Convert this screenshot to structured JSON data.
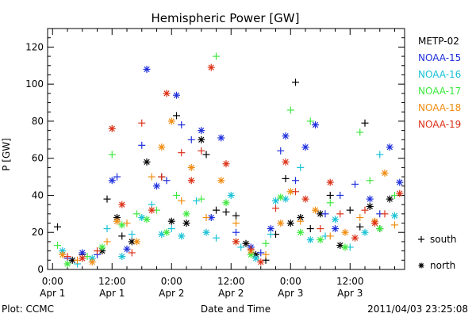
{
  "chart_data": {
    "type": "scatter",
    "title": "Hemispheric Power [GW]",
    "ylabel": "P [GW]",
    "xlabel": "Date and Time",
    "ylim": [
      0,
      130
    ],
    "yticks": [
      0,
      20,
      40,
      60,
      80,
      100,
      120
    ],
    "xlim_hours": [
      -1,
      71
    ],
    "xticks": [
      {
        "hour": 0,
        "time": "0:00",
        "date": "Apr 1"
      },
      {
        "hour": 12,
        "time": "12:00",
        "date": "Apr 1"
      },
      {
        "hour": 24,
        "time": "0:00",
        "date": "Apr 2"
      },
      {
        "hour": 36,
        "time": "12:00",
        "date": "Apr 2"
      },
      {
        "hour": 48,
        "time": "0:00",
        "date": "Apr 3"
      },
      {
        "hour": 60,
        "time": "12:00",
        "date": "Apr 3"
      }
    ],
    "marker_legend": [
      {
        "symbol": "+",
        "label": "south"
      },
      {
        "symbol": "*",
        "label": "north"
      }
    ],
    "series": [
      {
        "name": "METP-02",
        "color": "#000000",
        "points": [
          [
            1,
            23,
            "+"
          ],
          [
            4,
            5,
            "*"
          ],
          [
            6,
            8,
            "+"
          ],
          [
            10,
            10,
            "*"
          ],
          [
            11,
            38,
            "+"
          ],
          [
            13,
            28,
            "*"
          ],
          [
            14,
            18,
            "+"
          ],
          [
            16,
            15,
            "*"
          ],
          [
            19,
            58,
            "*"
          ],
          [
            22,
            50,
            "+"
          ],
          [
            24,
            26,
            "*"
          ],
          [
            25,
            83,
            "+"
          ],
          [
            27,
            25,
            "*"
          ],
          [
            30,
            70,
            "*"
          ],
          [
            31,
            62,
            "+"
          ],
          [
            33,
            32,
            "+"
          ],
          [
            35,
            31,
            "+"
          ],
          [
            37,
            29,
            "+"
          ],
          [
            39,
            14,
            "*"
          ],
          [
            41,
            8,
            "*"
          ],
          [
            43,
            5,
            "+"
          ],
          [
            45,
            19,
            "+"
          ],
          [
            47,
            49,
            "+"
          ],
          [
            48,
            25,
            "*"
          ],
          [
            49,
            101,
            "+"
          ],
          [
            50,
            28,
            "*"
          ],
          [
            52,
            22,
            "+"
          ],
          [
            54,
            30,
            "*"
          ],
          [
            56,
            40,
            "+"
          ],
          [
            58,
            13,
            "*"
          ],
          [
            60,
            32,
            "+"
          ],
          [
            62,
            23,
            "+"
          ],
          [
            63,
            79,
            "+"
          ],
          [
            64,
            34,
            "*"
          ],
          [
            66,
            22,
            "+"
          ],
          [
            68,
            38,
            "*"
          ]
        ]
      },
      {
        "name": "NOAA-15",
        "color": "#1f2fdc",
        "points": [
          [
            3,
            6,
            "+"
          ],
          [
            6,
            9,
            "*"
          ],
          [
            9,
            8,
            "+"
          ],
          [
            12,
            48,
            "*"
          ],
          [
            13,
            50,
            "+"
          ],
          [
            15,
            11,
            "*"
          ],
          [
            18,
            67,
            "+"
          ],
          [
            19,
            108,
            "*"
          ],
          [
            21,
            45,
            "*"
          ],
          [
            23,
            48,
            "+"
          ],
          [
            25,
            94,
            "*"
          ],
          [
            26,
            78,
            "+"
          ],
          [
            28,
            70,
            "+"
          ],
          [
            30,
            75,
            "*"
          ],
          [
            32,
            28,
            "*"
          ],
          [
            34,
            71,
            "*"
          ],
          [
            37,
            20,
            "+"
          ],
          [
            40,
            12,
            "*"
          ],
          [
            42,
            9,
            "+"
          ],
          [
            44,
            22,
            "*"
          ],
          [
            46,
            64,
            "+"
          ],
          [
            47,
            72,
            "*"
          ],
          [
            49,
            48,
            "+"
          ],
          [
            51,
            66,
            "*"
          ],
          [
            53,
            78,
            "*"
          ],
          [
            55,
            30,
            "+"
          ],
          [
            57,
            22,
            "*"
          ],
          [
            58,
            40,
            "+"
          ],
          [
            61,
            46,
            "+"
          ],
          [
            64,
            38,
            "*"
          ],
          [
            66,
            30,
            "+"
          ],
          [
            68,
            66,
            "*"
          ],
          [
            70,
            47,
            "*"
          ]
        ]
      },
      {
        "name": "NOAA-16",
        "color": "#19c2d6",
        "points": [
          [
            2,
            10,
            "*"
          ],
          [
            5,
            3,
            "+"
          ],
          [
            8,
            6,
            "*"
          ],
          [
            11,
            22,
            "+"
          ],
          [
            14,
            7,
            "*"
          ],
          [
            16,
            19,
            "+"
          ],
          [
            18,
            28,
            "*"
          ],
          [
            20,
            35,
            "+"
          ],
          [
            22,
            19,
            "*"
          ],
          [
            24,
            22,
            "+"
          ],
          [
            26,
            18,
            "*"
          ],
          [
            29,
            37,
            "+"
          ],
          [
            31,
            20,
            "*"
          ],
          [
            33,
            17,
            "+"
          ],
          [
            36,
            40,
            "*"
          ],
          [
            38,
            12,
            "+"
          ],
          [
            41,
            6,
            "*"
          ],
          [
            44,
            19,
            "+"
          ],
          [
            45,
            37,
            "*"
          ],
          [
            47,
            38,
            "*"
          ],
          [
            50,
            55,
            "+"
          ],
          [
            52,
            16,
            "*"
          ],
          [
            55,
            18,
            "+"
          ],
          [
            57,
            27,
            "*"
          ],
          [
            60,
            12,
            "+"
          ],
          [
            63,
            20,
            "*"
          ],
          [
            66,
            62,
            "+"
          ],
          [
            69,
            29,
            "*"
          ]
        ]
      },
      {
        "name": "NOAA-17",
        "color": "#3ee83e",
        "points": [
          [
            1,
            13,
            "+"
          ],
          [
            3,
            3,
            "*"
          ],
          [
            7,
            7,
            "+"
          ],
          [
            10,
            12,
            "*"
          ],
          [
            12,
            62,
            "+"
          ],
          [
            14,
            24,
            "*"
          ],
          [
            17,
            30,
            "+"
          ],
          [
            19,
            27,
            "*"
          ],
          [
            21,
            32,
            "+"
          ],
          [
            23,
            20,
            "*"
          ],
          [
            25,
            40,
            "+"
          ],
          [
            27,
            30,
            "*"
          ],
          [
            30,
            38,
            "+"
          ],
          [
            33,
            115,
            "+"
          ],
          [
            35,
            36,
            "*"
          ],
          [
            37,
            15,
            "+"
          ],
          [
            40,
            8,
            "*"
          ],
          [
            43,
            14,
            "+"
          ],
          [
            46,
            39,
            "*"
          ],
          [
            48,
            86,
            "+"
          ],
          [
            50,
            20,
            "*"
          ],
          [
            52,
            80,
            "+"
          ],
          [
            54,
            16,
            "*"
          ],
          [
            56,
            36,
            "+"
          ],
          [
            59,
            12,
            "*"
          ],
          [
            62,
            74,
            "+"
          ],
          [
            64,
            48,
            "+"
          ],
          [
            66,
            22,
            "*"
          ],
          [
            69,
            40,
            "+"
          ]
        ]
      },
      {
        "name": "NOAA-18",
        "color": "#f08c10",
        "points": [
          [
            2,
            8,
            "*"
          ],
          [
            5,
            5,
            "+"
          ],
          [
            8,
            4,
            "*"
          ],
          [
            11,
            15,
            "+"
          ],
          [
            13,
            26,
            "*"
          ],
          [
            15,
            25,
            "+"
          ],
          [
            17,
            15,
            "*"
          ],
          [
            20,
            50,
            "+"
          ],
          [
            22,
            66,
            "*"
          ],
          [
            24,
            80,
            "*"
          ],
          [
            26,
            37,
            "+"
          ],
          [
            28,
            55,
            "*"
          ],
          [
            31,
            28,
            "+"
          ],
          [
            34,
            48,
            "*"
          ],
          [
            37,
            25,
            "+"
          ],
          [
            40,
            10,
            "*"
          ],
          [
            43,
            8,
            "+"
          ],
          [
            46,
            25,
            "*"
          ],
          [
            48,
            42,
            "*"
          ],
          [
            50,
            26,
            "+"
          ],
          [
            53,
            32,
            "*"
          ],
          [
            56,
            18,
            "+"
          ],
          [
            59,
            20,
            "*"
          ],
          [
            62,
            28,
            "+"
          ],
          [
            65,
            26,
            "*"
          ],
          [
            67,
            52,
            "*"
          ],
          [
            69,
            24,
            "+"
          ]
        ]
      },
      {
        "name": "NOAA-19",
        "color": "#dc3218",
        "points": [
          [
            3,
            7,
            "+"
          ],
          [
            6,
            6,
            "*"
          ],
          [
            9,
            10,
            "+"
          ],
          [
            12,
            76,
            "*"
          ],
          [
            14,
            35,
            "*"
          ],
          [
            16,
            9,
            "+"
          ],
          [
            18,
            79,
            "+"
          ],
          [
            20,
            32,
            "*"
          ],
          [
            22,
            50,
            "+"
          ],
          [
            23,
            95,
            "*"
          ],
          [
            26,
            63,
            "+"
          ],
          [
            28,
            48,
            "*"
          ],
          [
            30,
            64,
            "+"
          ],
          [
            32,
            109,
            "*"
          ],
          [
            35,
            57,
            "*"
          ],
          [
            37,
            15,
            "*"
          ],
          [
            40,
            11,
            "+"
          ],
          [
            42,
            4,
            "*"
          ],
          [
            45,
            33,
            "+"
          ],
          [
            47,
            58,
            "*"
          ],
          [
            49,
            42,
            "+"
          ],
          [
            51,
            38,
            "*"
          ],
          [
            54,
            22,
            "+"
          ],
          [
            56,
            47,
            "*"
          ],
          [
            58,
            30,
            "+"
          ],
          [
            61,
            17,
            "*"
          ],
          [
            63,
            32,
            "+"
          ],
          [
            65,
            25,
            "*"
          ],
          [
            67,
            30,
            "+"
          ],
          [
            70,
            41,
            "*"
          ]
        ]
      }
    ]
  },
  "footer": {
    "plot_credit": "Plot: CCMC",
    "timestamp": "2011/04/03 23:25:08"
  }
}
